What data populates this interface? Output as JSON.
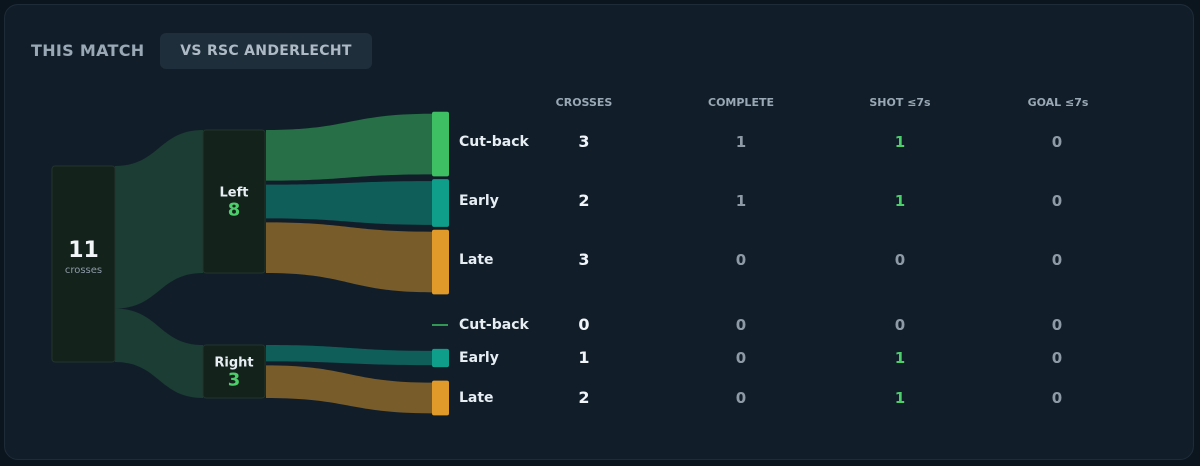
{
  "header": {
    "title": "THIS MATCH",
    "tab_label": "VS RSC ANDERLECHT"
  },
  "total": {
    "value": "11",
    "label": "crosses"
  },
  "columns": [
    "CROSSES",
    "COMPLETE",
    "SHOT ≤7s",
    "GOAL ≤7s"
  ],
  "colors": {
    "cut_back": "#3ebf63",
    "early": "#0f9e8a",
    "late": "#e09a2a",
    "highlight_green": "#4ccf6a",
    "root_flow": "#1c3d33"
  },
  "chart_data": {
    "type": "sankey",
    "total": 11,
    "groups": [
      {
        "name": "Left",
        "total": 8,
        "rows": [
          {
            "type": "Cut-back",
            "crosses": 3,
            "complete": 1,
            "shot": 1,
            "goal": 0
          },
          {
            "type": "Early",
            "crosses": 2,
            "complete": 1,
            "shot": 1,
            "goal": 0
          },
          {
            "type": "Late",
            "crosses": 3,
            "complete": 0,
            "shot": 0,
            "goal": 0
          }
        ]
      },
      {
        "name": "Right",
        "total": 3,
        "rows": [
          {
            "type": "Cut-back",
            "crosses": 0,
            "complete": 0,
            "shot": 0,
            "goal": 0
          },
          {
            "type": "Early",
            "crosses": 1,
            "complete": 0,
            "shot": 1,
            "goal": 0
          },
          {
            "type": "Late",
            "crosses": 2,
            "complete": 0,
            "shot": 1,
            "goal": 0
          }
        ]
      }
    ]
  }
}
